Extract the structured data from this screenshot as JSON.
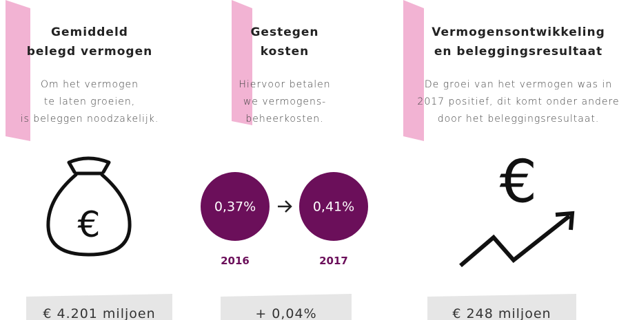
{
  "columns": [
    {
      "title": [
        "Gemiddeld",
        "belegd vermogen"
      ],
      "description": [
        "Om het vermogen",
        "te laten groeien,",
        "is beleggen noodzakelijk."
      ],
      "icon_symbol": "€",
      "value": "€ 4.201 miljoen"
    },
    {
      "title": [
        "Gestegen",
        "kosten"
      ],
      "description": [
        "Hiervoor betalen",
        "we vermogens-",
        "beheerkosten."
      ],
      "rates": [
        {
          "value": "0,37%",
          "year": "2016"
        },
        {
          "value": "0,41%",
          "year": "2017"
        }
      ],
      "value": "+ 0,04%"
    },
    {
      "title": [
        "Vermogensontwikkeling",
        "en beleggingsresultaat"
      ],
      "description": [
        "De groei van het vermogen was in",
        "2017 positief, dit komt onder andere",
        "door het beleggingsresultaat."
      ],
      "icon_symbol": "€",
      "value": "€ 248 miljoen"
    }
  ]
}
